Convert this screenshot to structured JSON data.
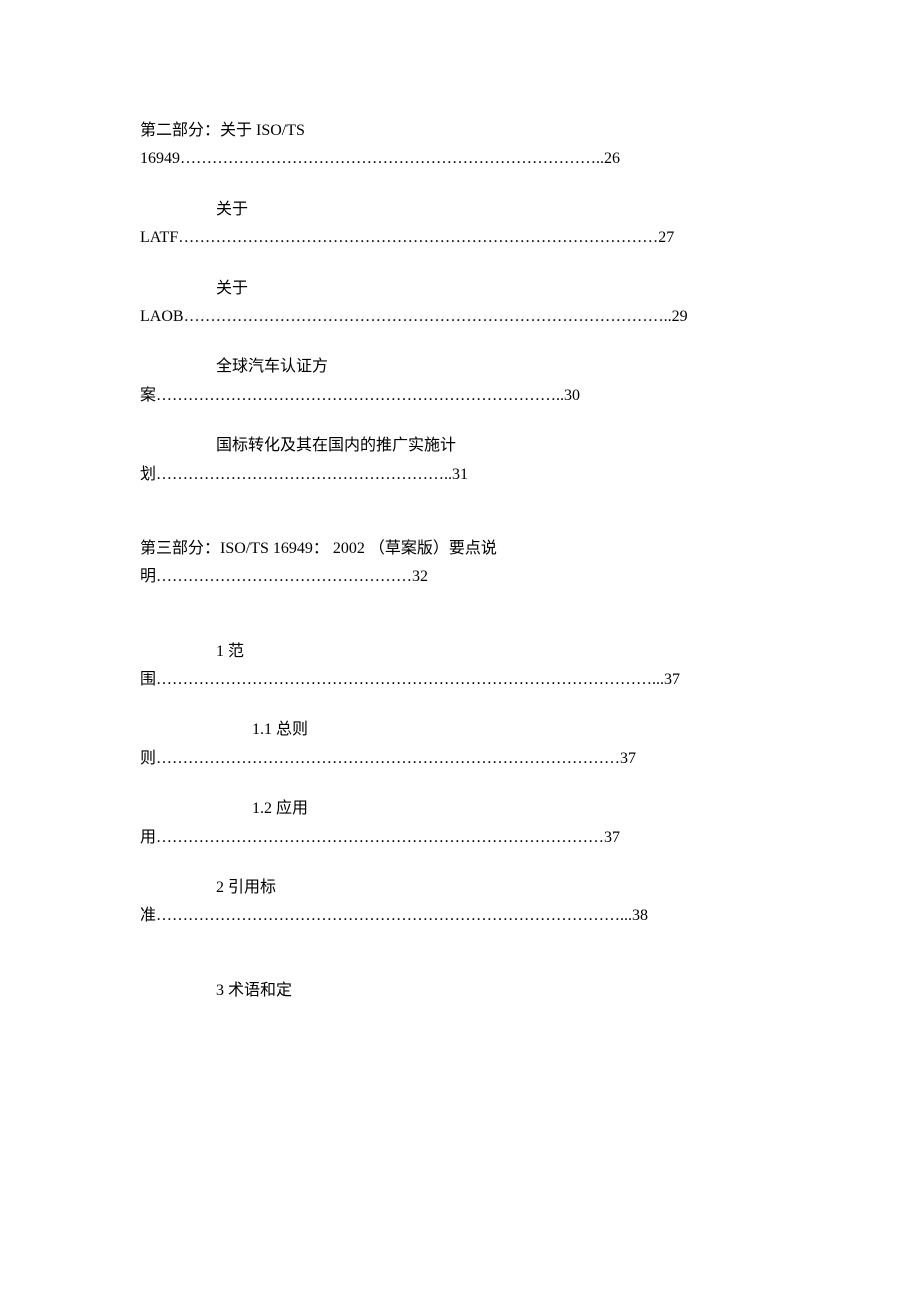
{
  "toc": {
    "entries": [
      {
        "label": "第二部分：关于 ISO/TS",
        "label_indent": "label-indent-0",
        "prefix": "16949",
        "dots": "……………………………………………………………………..",
        "page": "26",
        "gap_after": false
      },
      {
        "label": "关于",
        "label_indent": "label-indent-1",
        "prefix": "LATF",
        "dots": "………………………………………………………………………………",
        "page": "27",
        "gap_after": false
      },
      {
        "label": "关于",
        "label_indent": "label-indent-1",
        "prefix": "LAOB",
        "dots": "………………………………………………………………………………..",
        "page": "29",
        "gap_after": false
      },
      {
        "label": "全球汽车认证方",
        "label_indent": "label-indent-1",
        "prefix": "案",
        "dots": "…………………………………………………………………..",
        "page": "30",
        "gap_after": false
      },
      {
        "label": "国标转化及其在国内的推广实施计",
        "label_indent": "label-indent-1",
        "prefix": "划",
        "dots": "………………………………………………..",
        "page": "31",
        "gap_after": true
      },
      {
        "label": "第三部分：ISO/TS 16949： 2002 （草案版）要点说",
        "label_indent": "label-indent-0",
        "prefix": "明",
        "dots": "…………………………………………",
        "page": "32",
        "gap_after": true
      },
      {
        "label": "1 范",
        "label_indent": "label-indent-2",
        "prefix": "围",
        "dots": "…………………………………………………………………………………...",
        "page": "37",
        "gap_after": false
      },
      {
        "label": "1.1 总则",
        "label_indent": "label-indent-3",
        "prefix": "则",
        "dots": "……………………………………………………………………………",
        "page": "37",
        "gap_after": false
      },
      {
        "label": "1.2 应用",
        "label_indent": "label-indent-3",
        "prefix": "用",
        "dots": "…………………………………………………………………………",
        "page": "37",
        "gap_after": false
      },
      {
        "label": "2 引用标",
        "label_indent": "label-indent-2",
        "prefix": "准",
        "dots": "……………………………………………………………………………...",
        "page": "38",
        "gap_after": true
      },
      {
        "label": "3 术语和定",
        "label_indent": "label-indent-2",
        "prefix": "",
        "dots": "",
        "page": "",
        "gap_after": false
      }
    ]
  }
}
